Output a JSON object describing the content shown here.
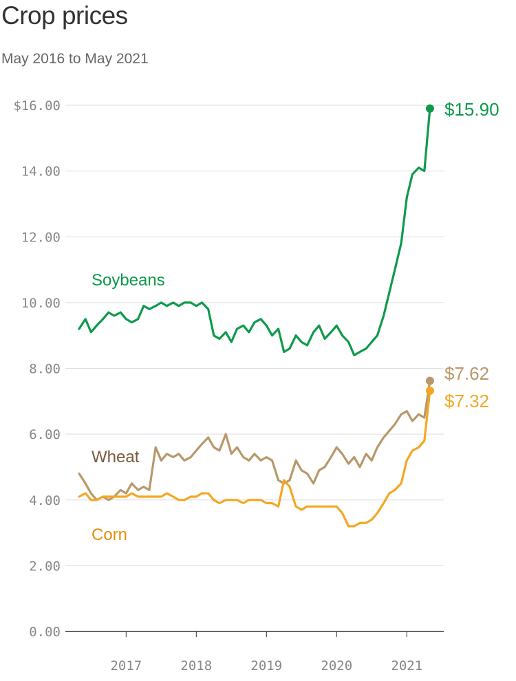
{
  "chart_data": {
    "type": "line",
    "title": "Crop prices",
    "subtitle": "May 2016 to May 2021",
    "xlabel": "",
    "ylabel": "",
    "x_range": [
      "2016-05",
      "2021-05"
    ],
    "x_ticks": [
      "2017",
      "2018",
      "2019",
      "2020",
      "2021"
    ],
    "ylim": [
      0,
      16
    ],
    "y_ticks": [
      "$16.00",
      "14.00",
      "12.00",
      "10.00",
      "8.00",
      "6.00",
      "4.00",
      "2.00",
      "0.00"
    ],
    "grid": true,
    "legend": "inline labels",
    "series": [
      {
        "name": "Soybeans",
        "color": "#0e9a4b",
        "end_label": "$15.90",
        "x": [
          2016.33,
          2016.42,
          2016.5,
          2016.58,
          2016.67,
          2016.75,
          2016.83,
          2016.92,
          2017.0,
          2017.08,
          2017.17,
          2017.25,
          2017.33,
          2017.42,
          2017.5,
          2017.58,
          2017.67,
          2017.75,
          2017.83,
          2017.92,
          2018.0,
          2018.08,
          2018.17,
          2018.25,
          2018.33,
          2018.42,
          2018.5,
          2018.58,
          2018.67,
          2018.75,
          2018.83,
          2018.92,
          2019.0,
          2019.08,
          2019.17,
          2019.25,
          2019.33,
          2019.42,
          2019.5,
          2019.58,
          2019.67,
          2019.75,
          2019.83,
          2019.92,
          2020.0,
          2020.08,
          2020.17,
          2020.25,
          2020.33,
          2020.42,
          2020.5,
          2020.58,
          2020.67,
          2020.75,
          2020.83,
          2020.92,
          2021.0,
          2021.08,
          2021.17,
          2021.25,
          2021.33
        ],
        "values": [
          9.2,
          9.5,
          9.1,
          9.3,
          9.5,
          9.7,
          9.6,
          9.7,
          9.5,
          9.4,
          9.5,
          9.9,
          9.8,
          9.9,
          10.0,
          9.9,
          10.0,
          9.9,
          10.0,
          10.0,
          9.9,
          10.0,
          9.8,
          9.0,
          8.9,
          9.1,
          8.8,
          9.2,
          9.3,
          9.1,
          9.4,
          9.5,
          9.3,
          9.0,
          9.2,
          8.5,
          8.6,
          9.0,
          8.8,
          8.7,
          9.1,
          9.3,
          8.9,
          9.1,
          9.3,
          9.0,
          8.8,
          8.4,
          8.5,
          8.6,
          8.8,
          9.0,
          9.6,
          10.3,
          11.0,
          11.8,
          13.2,
          13.9,
          14.1,
          14.0,
          15.9
        ]
      },
      {
        "name": "Wheat",
        "color": "#b8986b",
        "label_color": "#7a5a3c",
        "end_label": "$7.62",
        "x": [
          2016.33,
          2016.42,
          2016.5,
          2016.58,
          2016.67,
          2016.75,
          2016.83,
          2016.92,
          2017.0,
          2017.08,
          2017.17,
          2017.25,
          2017.33,
          2017.42,
          2017.5,
          2017.58,
          2017.67,
          2017.75,
          2017.83,
          2017.92,
          2018.0,
          2018.08,
          2018.17,
          2018.25,
          2018.33,
          2018.42,
          2018.5,
          2018.58,
          2018.67,
          2018.75,
          2018.83,
          2018.92,
          2019.0,
          2019.08,
          2019.17,
          2019.25,
          2019.33,
          2019.42,
          2019.5,
          2019.58,
          2019.67,
          2019.75,
          2019.83,
          2019.92,
          2020.0,
          2020.08,
          2020.17,
          2020.25,
          2020.33,
          2020.42,
          2020.5,
          2020.58,
          2020.67,
          2020.75,
          2020.83,
          2020.92,
          2021.0,
          2021.08,
          2021.17,
          2021.25,
          2021.33
        ],
        "values": [
          4.8,
          4.5,
          4.2,
          4.0,
          4.1,
          4.0,
          4.1,
          4.3,
          4.2,
          4.5,
          4.3,
          4.4,
          4.3,
          5.6,
          5.2,
          5.4,
          5.3,
          5.4,
          5.2,
          5.3,
          5.5,
          5.7,
          5.9,
          5.6,
          5.5,
          6.0,
          5.4,
          5.6,
          5.3,
          5.2,
          5.4,
          5.2,
          5.3,
          5.2,
          4.6,
          4.5,
          4.6,
          5.2,
          4.9,
          4.8,
          4.5,
          4.9,
          5.0,
          5.3,
          5.6,
          5.4,
          5.1,
          5.3,
          5.0,
          5.4,
          5.2,
          5.6,
          5.9,
          6.1,
          6.3,
          6.6,
          6.7,
          6.4,
          6.6,
          6.5,
          7.62
        ]
      },
      {
        "name": "Corn",
        "color": "#f5a623",
        "label_color": "#e58e0c",
        "end_label": "$7.32",
        "x": [
          2016.33,
          2016.42,
          2016.5,
          2016.58,
          2016.67,
          2016.75,
          2016.83,
          2016.92,
          2017.0,
          2017.08,
          2017.17,
          2017.25,
          2017.33,
          2017.42,
          2017.5,
          2017.58,
          2017.67,
          2017.75,
          2017.83,
          2017.92,
          2018.0,
          2018.08,
          2018.17,
          2018.25,
          2018.33,
          2018.42,
          2018.5,
          2018.58,
          2018.67,
          2018.75,
          2018.83,
          2018.92,
          2019.0,
          2019.08,
          2019.17,
          2019.25,
          2019.33,
          2019.42,
          2019.5,
          2019.58,
          2019.67,
          2019.75,
          2019.83,
          2019.92,
          2020.0,
          2020.08,
          2020.17,
          2020.25,
          2020.33,
          2020.42,
          2020.5,
          2020.58,
          2020.67,
          2020.75,
          2020.83,
          2020.92,
          2021.0,
          2021.08,
          2021.17,
          2021.25,
          2021.33
        ],
        "values": [
          4.1,
          4.2,
          4.0,
          4.0,
          4.1,
          4.1,
          4.1,
          4.1,
          4.1,
          4.2,
          4.1,
          4.1,
          4.1,
          4.1,
          4.1,
          4.2,
          4.1,
          4.0,
          4.0,
          4.1,
          4.1,
          4.2,
          4.2,
          4.0,
          3.9,
          4.0,
          4.0,
          4.0,
          3.9,
          4.0,
          4.0,
          4.0,
          3.9,
          3.9,
          3.8,
          4.6,
          4.4,
          3.8,
          3.7,
          3.8,
          3.8,
          3.8,
          3.8,
          3.8,
          3.8,
          3.6,
          3.2,
          3.2,
          3.3,
          3.3,
          3.4,
          3.6,
          3.9,
          4.2,
          4.3,
          4.5,
          5.2,
          5.5,
          5.6,
          5.8,
          7.32
        ]
      }
    ]
  }
}
